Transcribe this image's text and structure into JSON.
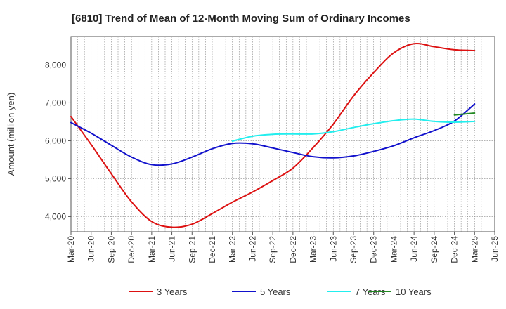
{
  "chart_data": {
    "type": "line",
    "title": "[6810]  Trend of Mean of 12-Month Moving Sum of Ordinary Incomes",
    "xlabel": "",
    "ylabel": "Amount (million yen)",
    "ylim": [
      3600,
      8750
    ],
    "yticks": [
      4000,
      5000,
      6000,
      7000,
      8000
    ],
    "ytick_labels": [
      "4,000",
      "5,000",
      "6,000",
      "7,000",
      "8,000"
    ],
    "grid": true,
    "legend_position": "bottom",
    "x_tick_labels": [
      "Mar-20",
      "Jun-20",
      "Sep-20",
      "Dec-20",
      "Mar-21",
      "Jun-21",
      "Sep-21",
      "Dec-21",
      "Mar-22",
      "Jun-22",
      "Sep-22",
      "Dec-22",
      "Mar-23",
      "Jun-23",
      "Sep-23",
      "Dec-23",
      "Mar-24",
      "Jun-24",
      "Sep-24",
      "Dec-24",
      "Mar-25",
      "Jun-25"
    ],
    "series": [
      {
        "name": "3 Years",
        "color": "#dd1111",
        "start_index": 0,
        "values": [
          6640,
          5900,
          5130,
          4390,
          3870,
          3720,
          3800,
          4080,
          4380,
          4650,
          4950,
          5280,
          5820,
          6440,
          7180,
          7800,
          8320,
          8560,
          8480,
          8400,
          8380
        ]
      },
      {
        "name": "5 Years",
        "color": "#1111cc",
        "start_index": 0,
        "values": [
          6480,
          6200,
          5880,
          5570,
          5370,
          5390,
          5570,
          5790,
          5930,
          5920,
          5810,
          5690,
          5580,
          5550,
          5600,
          5720,
          5870,
          6080,
          6270,
          6520,
          6970
        ]
      },
      {
        "name": "7 Years",
        "color": "#22eeee",
        "start_index": 8,
        "values": [
          5990,
          6120,
          6170,
          6180,
          6180,
          6240,
          6350,
          6450,
          6530,
          6570,
          6510,
          6490,
          6510
        ]
      },
      {
        "name": "10 Years",
        "color": "#228822",
        "start_index": 19,
        "values": [
          6680,
          6730
        ]
      }
    ]
  }
}
